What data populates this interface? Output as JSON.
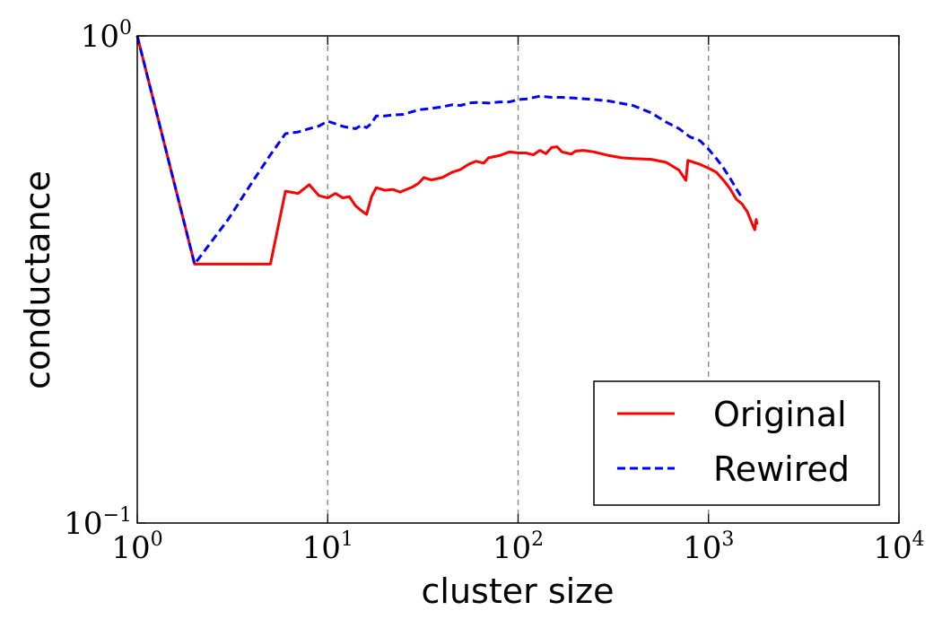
{
  "chart_data": {
    "type": "line",
    "xlabel": "cluster size",
    "ylabel": "conductance",
    "xscale": "log",
    "yscale": "log",
    "xlim": [
      1,
      10000
    ],
    "ylim": [
      0.1,
      1
    ],
    "x_ticks": [
      {
        "base": "10",
        "exp": "0",
        "value": 1
      },
      {
        "base": "10",
        "exp": "1",
        "value": 10
      },
      {
        "base": "10",
        "exp": "2",
        "value": 100
      },
      {
        "base": "10",
        "exp": "3",
        "value": 1000
      },
      {
        "base": "10",
        "exp": "4",
        "value": 10000
      }
    ],
    "y_ticks": [
      {
        "base": "10",
        "exp": "0",
        "value": 1
      },
      {
        "base": "10",
        "exp": "−1",
        "value": 0.1
      }
    ],
    "x_gridlines": [
      10,
      100,
      1000
    ],
    "grid": "vertical dashed at major x ticks",
    "legend_position": "bottom-right",
    "series": [
      {
        "name": "Original",
        "color": "#ff0000",
        "style": "solid",
        "points": [
          [
            1,
            1.0
          ],
          [
            2,
            0.34
          ],
          [
            3,
            0.34
          ],
          [
            5,
            0.34
          ],
          [
            6,
            0.48
          ],
          [
            7,
            0.475
          ],
          [
            8,
            0.495
          ],
          [
            9,
            0.47
          ],
          [
            10,
            0.465
          ],
          [
            11,
            0.475
          ],
          [
            12,
            0.465
          ],
          [
            13,
            0.468
          ],
          [
            14,
            0.448
          ],
          [
            15,
            0.438
          ],
          [
            16,
            0.43
          ],
          [
            17,
            0.468
          ],
          [
            18,
            0.488
          ],
          [
            20,
            0.482
          ],
          [
            22,
            0.484
          ],
          [
            24,
            0.478
          ],
          [
            28,
            0.49
          ],
          [
            30,
            0.498
          ],
          [
            32,
            0.512
          ],
          [
            35,
            0.506
          ],
          [
            40,
            0.512
          ],
          [
            45,
            0.525
          ],
          [
            50,
            0.532
          ],
          [
            55,
            0.545
          ],
          [
            60,
            0.553
          ],
          [
            66,
            0.548
          ],
          [
            70,
            0.562
          ],
          [
            80,
            0.568
          ],
          [
            90,
            0.578
          ],
          [
            100,
            0.575
          ],
          [
            110,
            0.575
          ],
          [
            120,
            0.57
          ],
          [
            130,
            0.582
          ],
          [
            140,
            0.573
          ],
          [
            150,
            0.59
          ],
          [
            160,
            0.592
          ],
          [
            170,
            0.578
          ],
          [
            190,
            0.572
          ],
          [
            200,
            0.58
          ],
          [
            220,
            0.582
          ],
          [
            250,
            0.578
          ],
          [
            300,
            0.568
          ],
          [
            350,
            0.562
          ],
          [
            400,
            0.56
          ],
          [
            500,
            0.558
          ],
          [
            600,
            0.55
          ],
          [
            700,
            0.53
          ],
          [
            760,
            0.505
          ],
          [
            780,
            0.555
          ],
          [
            900,
            0.545
          ],
          [
            1000,
            0.535
          ],
          [
            1100,
            0.525
          ],
          [
            1200,
            0.505
          ],
          [
            1300,
            0.485
          ],
          [
            1400,
            0.462
          ],
          [
            1500,
            0.452
          ],
          [
            1600,
            0.435
          ],
          [
            1700,
            0.41
          ],
          [
            1750,
            0.4
          ],
          [
            1780,
            0.42
          ],
          [
            1800,
            0.41
          ]
        ]
      },
      {
        "name": "Rewired",
        "color": "#0000ff",
        "style": "dashed",
        "points": [
          [
            1,
            1.0
          ],
          [
            2,
            0.34
          ],
          [
            3,
            0.42
          ],
          [
            4,
            0.5
          ],
          [
            5,
            0.57
          ],
          [
            6,
            0.63
          ],
          [
            7,
            0.635
          ],
          [
            8,
            0.645
          ],
          [
            9,
            0.653
          ],
          [
            10,
            0.668
          ],
          [
            11,
            0.66
          ],
          [
            12,
            0.652
          ],
          [
            13,
            0.648
          ],
          [
            14,
            0.645
          ],
          [
            15,
            0.655
          ],
          [
            16,
            0.648
          ],
          [
            17,
            0.662
          ],
          [
            18,
            0.685
          ],
          [
            20,
            0.685
          ],
          [
            22,
            0.688
          ],
          [
            25,
            0.69
          ],
          [
            30,
            0.705
          ],
          [
            35,
            0.71
          ],
          [
            40,
            0.715
          ],
          [
            45,
            0.722
          ],
          [
            50,
            0.72
          ],
          [
            55,
            0.728
          ],
          [
            60,
            0.73
          ],
          [
            70,
            0.728
          ],
          [
            80,
            0.732
          ],
          [
            90,
            0.732
          ],
          [
            100,
            0.74
          ],
          [
            110,
            0.742
          ],
          [
            130,
            0.752
          ],
          [
            150,
            0.748
          ],
          [
            170,
            0.748
          ],
          [
            200,
            0.745
          ],
          [
            250,
            0.74
          ],
          [
            300,
            0.735
          ],
          [
            400,
            0.72
          ],
          [
            500,
            0.695
          ],
          [
            600,
            0.665
          ],
          [
            700,
            0.645
          ],
          [
            800,
            0.62
          ],
          [
            900,
            0.61
          ],
          [
            1000,
            0.585
          ],
          [
            1100,
            0.56
          ],
          [
            1200,
            0.535
          ],
          [
            1300,
            0.51
          ],
          [
            1400,
            0.485
          ],
          [
            1500,
            0.465
          ]
        ]
      }
    ]
  }
}
